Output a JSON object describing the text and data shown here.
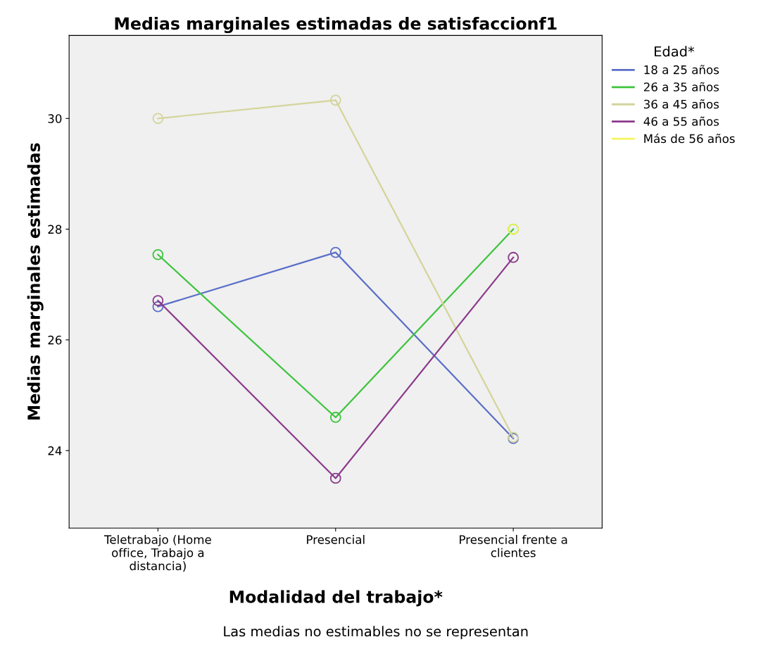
{
  "chart_data": {
    "type": "line",
    "title": "Medias marginales estimadas de satisfaccionf1",
    "xlabel": "Modalidad del trabajo*",
    "ylabel": "Medias marginales estimadas",
    "legend_title": "Edad*",
    "categories": [
      "Teletrabajo (Home\noffice, Trabajo a\ndistancia)",
      "Presencial",
      "Presencial frente a\nclientes"
    ],
    "series": [
      {
        "name": "18 a 25 años",
        "color": "#5b6fc9",
        "values": [
          26.6,
          27.58,
          24.22
        ]
      },
      {
        "name": "26 a 35 años",
        "color": "#3dc43d",
        "values": [
          27.54,
          24.6,
          28.0
        ]
      },
      {
        "name": "36 a 45 años",
        "color": "#d4d49a",
        "values": [
          30.0,
          30.33,
          24.24
        ]
      },
      {
        "name": "46 a 55 años",
        "color": "#8b3a8b",
        "values": [
          26.71,
          23.5,
          27.49
        ]
      },
      {
        "name": "Más de 56 años",
        "color": "#f5f55a",
        "values": [
          null,
          null,
          28.0
        ]
      }
    ],
    "ylim": [
      22.6,
      31.5
    ],
    "yticks": [
      24,
      26,
      28,
      30
    ],
    "grid": false,
    "legend": "top right",
    "marker": "circle",
    "line_style": "solid",
    "annotations": [
      "Las medias no estimables no se representan"
    ]
  }
}
